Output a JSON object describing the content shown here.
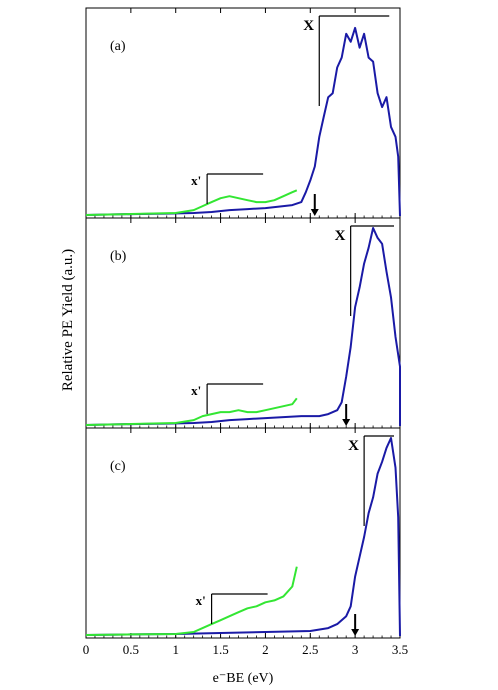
{
  "figure": {
    "ylabel": "Relative PE Yield (a.u.)",
    "xlabel": "e⁻BE (eV)"
  },
  "chart_data": [
    {
      "type": "line",
      "panel": "(a)",
      "xlim": [
        0,
        3.5
      ],
      "ylim": [
        0,
        1
      ],
      "xticks": [
        "0",
        "0.5",
        "1",
        "1.5",
        "2",
        "2.5",
        "3",
        "3.5"
      ],
      "colors": {
        "blue": "#1a1aa6",
        "green": "#33e633"
      },
      "series": [
        {
          "color": "blue",
          "points": [
            [
              0,
              0.005
            ],
            [
              0.3,
              0.008
            ],
            [
              0.6,
              0.01
            ],
            [
              0.9,
              0.012
            ],
            [
              1.2,
              0.015
            ],
            [
              1.4,
              0.02
            ],
            [
              1.6,
              0.03
            ],
            [
              1.8,
              0.035
            ],
            [
              2.0,
              0.04
            ],
            [
              2.1,
              0.045
            ],
            [
              2.2,
              0.05
            ],
            [
              2.3,
              0.055
            ],
            [
              2.4,
              0.07
            ],
            [
              2.45,
              0.12
            ],
            [
              2.5,
              0.18
            ],
            [
              2.55,
              0.25
            ],
            [
              2.6,
              0.4
            ],
            [
              2.65,
              0.5
            ],
            [
              2.7,
              0.6
            ],
            [
              2.75,
              0.62
            ],
            [
              2.8,
              0.75
            ],
            [
              2.85,
              0.8
            ],
            [
              2.9,
              0.92
            ],
            [
              2.95,
              0.88
            ],
            [
              3.0,
              0.95
            ],
            [
              3.05,
              0.85
            ],
            [
              3.1,
              0.92
            ],
            [
              3.15,
              0.8
            ],
            [
              3.2,
              0.78
            ],
            [
              3.25,
              0.62
            ],
            [
              3.3,
              0.55
            ],
            [
              3.35,
              0.6
            ],
            [
              3.4,
              0.45
            ],
            [
              3.45,
              0.4
            ],
            [
              3.48,
              0.3
            ],
            [
              3.5,
              0.0
            ]
          ]
        },
        {
          "color": "green",
          "points": [
            [
              0,
              0.005
            ],
            [
              0.5,
              0.01
            ],
            [
              1.0,
              0.015
            ],
            [
              1.2,
              0.03
            ],
            [
              1.3,
              0.05
            ],
            [
              1.4,
              0.07
            ],
            [
              1.5,
              0.09
            ],
            [
              1.6,
              0.1
            ],
            [
              1.7,
              0.09
            ],
            [
              1.8,
              0.08
            ],
            [
              1.9,
              0.07
            ],
            [
              2.0,
              0.07
            ],
            [
              2.1,
              0.08
            ],
            [
              2.2,
              0.1
            ],
            [
              2.3,
              0.12
            ],
            [
              2.35,
              0.13
            ]
          ]
        }
      ],
      "annotations": {
        "X": {
          "label": "X",
          "threshold": 2.55,
          "bracket_x": 2.6
        },
        "Xp": {
          "label": "x'",
          "bracket_x": 1.35
        }
      }
    },
    {
      "type": "line",
      "panel": "(b)",
      "xlim": [
        0,
        3.5
      ],
      "ylim": [
        0,
        1
      ],
      "xticks": [
        "0",
        "0.5",
        "1",
        "1.5",
        "2",
        "2.5",
        "3",
        "3.5"
      ],
      "colors": {
        "blue": "#1a1aa6",
        "green": "#33e633"
      },
      "series": [
        {
          "color": "blue",
          "points": [
            [
              0,
              0.005
            ],
            [
              0.3,
              0.008
            ],
            [
              0.6,
              0.01
            ],
            [
              0.9,
              0.012
            ],
            [
              1.2,
              0.015
            ],
            [
              1.4,
              0.02
            ],
            [
              1.6,
              0.03
            ],
            [
              1.8,
              0.035
            ],
            [
              2.0,
              0.04
            ],
            [
              2.2,
              0.045
            ],
            [
              2.4,
              0.05
            ],
            [
              2.6,
              0.05
            ],
            [
              2.7,
              0.06
            ],
            [
              2.8,
              0.08
            ],
            [
              2.85,
              0.12
            ],
            [
              2.9,
              0.25
            ],
            [
              2.95,
              0.4
            ],
            [
              3.0,
              0.6
            ],
            [
              3.05,
              0.7
            ],
            [
              3.1,
              0.82
            ],
            [
              3.15,
              0.9
            ],
            [
              3.2,
              1.0
            ],
            [
              3.25,
              0.95
            ],
            [
              3.3,
              0.92
            ],
            [
              3.35,
              0.78
            ],
            [
              3.4,
              0.65
            ],
            [
              3.45,
              0.45
            ],
            [
              3.5,
              0.3
            ],
            [
              3.5,
              0.0
            ]
          ]
        },
        {
          "color": "green",
          "points": [
            [
              0,
              0.005
            ],
            [
              0.5,
              0.01
            ],
            [
              1.0,
              0.015
            ],
            [
              1.2,
              0.03
            ],
            [
              1.3,
              0.05
            ],
            [
              1.4,
              0.06
            ],
            [
              1.5,
              0.07
            ],
            [
              1.6,
              0.07
            ],
            [
              1.7,
              0.08
            ],
            [
              1.8,
              0.07
            ],
            [
              1.9,
              0.07
            ],
            [
              2.0,
              0.08
            ],
            [
              2.1,
              0.09
            ],
            [
              2.2,
              0.1
            ],
            [
              2.3,
              0.11
            ],
            [
              2.35,
              0.14
            ]
          ]
        }
      ],
      "annotations": {
        "X": {
          "label": "X",
          "threshold": 2.9,
          "bracket_x": 2.95
        },
        "Xp": {
          "label": "x'",
          "bracket_x": 1.35
        }
      }
    },
    {
      "type": "line",
      "panel": "(c)",
      "xlim": [
        0,
        3.5
      ],
      "ylim": [
        0,
        1
      ],
      "xticks": [
        "0",
        "0.5",
        "1",
        "1.5",
        "2",
        "2.5",
        "3",
        "3.5"
      ],
      "colors": {
        "blue": "#1a1aa6",
        "green": "#33e633"
      },
      "series": [
        {
          "color": "blue",
          "points": [
            [
              0,
              0.005
            ],
            [
              0.5,
              0.008
            ],
            [
              1.0,
              0.01
            ],
            [
              1.5,
              0.015
            ],
            [
              2.0,
              0.02
            ],
            [
              2.5,
              0.025
            ],
            [
              2.7,
              0.04
            ],
            [
              2.8,
              0.06
            ],
            [
              2.9,
              0.1
            ],
            [
              2.95,
              0.15
            ],
            [
              3.0,
              0.3
            ],
            [
              3.05,
              0.4
            ],
            [
              3.1,
              0.5
            ],
            [
              3.15,
              0.62
            ],
            [
              3.2,
              0.7
            ],
            [
              3.25,
              0.82
            ],
            [
              3.3,
              0.88
            ],
            [
              3.35,
              0.95
            ],
            [
              3.4,
              1.0
            ],
            [
              3.45,
              0.85
            ],
            [
              3.48,
              0.6
            ],
            [
              3.5,
              0.0
            ]
          ]
        },
        {
          "color": "green",
          "points": [
            [
              0,
              0.005
            ],
            [
              0.5,
              0.008
            ],
            [
              1.0,
              0.01
            ],
            [
              1.2,
              0.02
            ],
            [
              1.3,
              0.04
            ],
            [
              1.4,
              0.06
            ],
            [
              1.5,
              0.08
            ],
            [
              1.6,
              0.1
            ],
            [
              1.7,
              0.12
            ],
            [
              1.8,
              0.14
            ],
            [
              1.9,
              0.15
            ],
            [
              2.0,
              0.17
            ],
            [
              2.1,
              0.18
            ],
            [
              2.2,
              0.2
            ],
            [
              2.3,
              0.25
            ],
            [
              2.35,
              0.35
            ]
          ]
        }
      ],
      "annotations": {
        "X": {
          "label": "X",
          "threshold": 3.0,
          "bracket_x": 3.1
        },
        "Xp": {
          "label": "x'",
          "bracket_x": 1.4
        }
      }
    }
  ]
}
